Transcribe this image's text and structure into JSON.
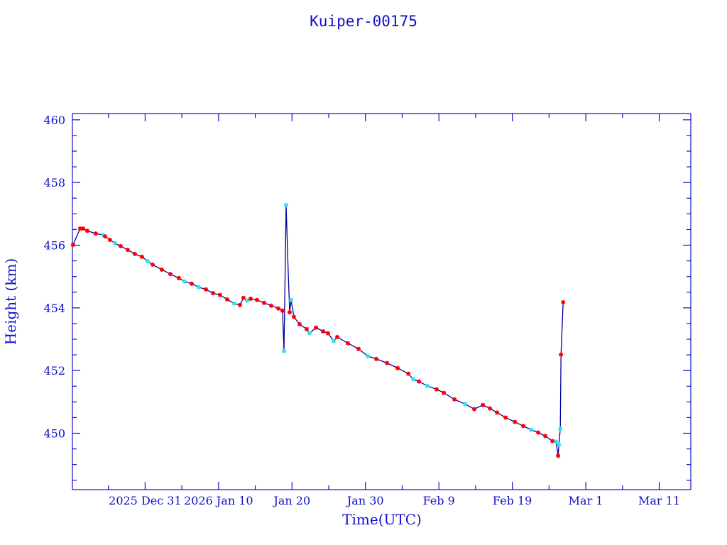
{
  "chart_data": {
    "type": "line",
    "title": "Kuiper-00175",
    "xlabel": "Time(UTC)",
    "ylabel": "Height (km)",
    "x_units": "days since 2025 Dec 31 00:00 UTC",
    "xlim": [
      -9.9,
      74.3
    ],
    "ylim": [
      448.2,
      460.2
    ],
    "grid": false,
    "x_ticks": [
      {
        "value": 0,
        "label": "2025 Dec 31"
      },
      {
        "value": 10,
        "label": "2026 Jan 10"
      },
      {
        "value": 20,
        "label": "Jan 20"
      },
      {
        "value": 30,
        "label": "Jan 30"
      },
      {
        "value": 40,
        "label": "Feb  9"
      },
      {
        "value": 50,
        "label": "Feb 19"
      },
      {
        "value": 60,
        "label": "Mar  1"
      },
      {
        "value": 70,
        "label": "Mar 11"
      }
    ],
    "y_ticks": [
      {
        "value": 450,
        "label": "450"
      },
      {
        "value": 452,
        "label": "452"
      },
      {
        "value": 454,
        "label": "454"
      },
      {
        "value": 456,
        "label": "456"
      },
      {
        "value": 458,
        "label": "458"
      },
      {
        "value": 460,
        "label": "460"
      }
    ],
    "colors": {
      "axis": "#1010c8",
      "line": "#00009c",
      "red_marker": "#ff0000",
      "cyan_marker": "#30e0f0"
    },
    "points": [
      [
        -9.82,
        456.01,
        "r"
      ],
      [
        -8.85,
        456.53,
        "r"
      ],
      [
        -8.46,
        456.53,
        "r"
      ],
      [
        -7.88,
        456.46,
        "r"
      ],
      [
        -6.72,
        456.37,
        "r"
      ],
      [
        -5.75,
        456.33,
        "c"
      ],
      [
        -5.46,
        456.28,
        "r"
      ],
      [
        -4.79,
        456.17,
        "r"
      ],
      [
        -4.11,
        456.06,
        "c"
      ],
      [
        -3.34,
        455.97,
        "r"
      ],
      [
        -2.37,
        455.85,
        "r"
      ],
      [
        -1.4,
        455.72,
        "r"
      ],
      [
        -0.44,
        455.63,
        "r"
      ],
      [
        0.34,
        455.49,
        "c"
      ],
      [
        1.02,
        455.38,
        "r"
      ],
      [
        2.27,
        455.22,
        "r"
      ],
      [
        3.43,
        455.08,
        "r"
      ],
      [
        4.59,
        454.95,
        "r"
      ],
      [
        5.37,
        454.84,
        "c"
      ],
      [
        6.33,
        454.77,
        "r"
      ],
      [
        7.3,
        454.66,
        "c"
      ],
      [
        8.27,
        454.59,
        "r"
      ],
      [
        9.24,
        454.47,
        "r"
      ],
      [
        10.2,
        454.41,
        "r"
      ],
      [
        11.17,
        454.27,
        "r"
      ],
      [
        12.14,
        454.14,
        "c"
      ],
      [
        12.91,
        454.09,
        "r"
      ],
      [
        13.39,
        454.32,
        "r"
      ],
      [
        13.88,
        454.23,
        "c"
      ],
      [
        14.36,
        454.29,
        "r"
      ],
      [
        15.23,
        454.25,
        "r"
      ],
      [
        16.2,
        454.16,
        "r"
      ],
      [
        17.17,
        454.07,
        "r"
      ],
      [
        18.14,
        453.98,
        "r"
      ],
      [
        18.71,
        453.91,
        "r"
      ],
      [
        18.91,
        452.62,
        "c"
      ],
      [
        19.2,
        457.28,
        "c"
      ],
      [
        19.49,
        455.11,
        "n"
      ],
      [
        19.68,
        453.86,
        "r"
      ],
      [
        19.87,
        454.25,
        "c"
      ],
      [
        20.26,
        453.71,
        "r"
      ],
      [
        21.03,
        453.48,
        "r"
      ],
      [
        22.0,
        453.32,
        "r"
      ],
      [
        22.39,
        453.19,
        "c"
      ],
      [
        23.26,
        453.37,
        "r"
      ],
      [
        24.23,
        453.25,
        "r"
      ],
      [
        24.9,
        453.19,
        "r"
      ],
      [
        25.68,
        452.94,
        "c"
      ],
      [
        26.16,
        453.07,
        "r"
      ],
      [
        27.61,
        452.87,
        "r"
      ],
      [
        29.06,
        452.69,
        "r"
      ],
      [
        30.32,
        452.46,
        "c"
      ],
      [
        31.48,
        452.37,
        "r"
      ],
      [
        32.93,
        452.24,
        "r"
      ],
      [
        34.38,
        452.08,
        "r"
      ],
      [
        35.83,
        451.9,
        "r"
      ],
      [
        36.51,
        451.72,
        "c"
      ],
      [
        37.28,
        451.65,
        "r"
      ],
      [
        38.44,
        451.51,
        "c"
      ],
      [
        39.7,
        451.4,
        "r"
      ],
      [
        40.67,
        451.29,
        "r"
      ],
      [
        42.12,
        451.08,
        "r"
      ],
      [
        43.57,
        450.93,
        "c"
      ],
      [
        44.82,
        450.77,
        "r"
      ],
      [
        45.99,
        450.9,
        "r"
      ],
      [
        46.95,
        450.79,
        "r"
      ],
      [
        47.92,
        450.66,
        "r"
      ],
      [
        49.08,
        450.5,
        "r"
      ],
      [
        50.34,
        450.36,
        "r"
      ],
      [
        51.5,
        450.23,
        "r"
      ],
      [
        52.56,
        450.11,
        "c"
      ],
      [
        53.53,
        450.02,
        "r"
      ],
      [
        54.5,
        449.91,
        "r"
      ],
      [
        55.46,
        449.75,
        "r"
      ],
      [
        55.95,
        449.73,
        "c"
      ],
      [
        56.24,
        449.28,
        "r"
      ],
      [
        56.34,
        449.64,
        "c"
      ],
      [
        56.53,
        450.14,
        "c"
      ],
      [
        56.63,
        452.51,
        "r"
      ],
      [
        56.92,
        454.18,
        "r"
      ]
    ]
  }
}
